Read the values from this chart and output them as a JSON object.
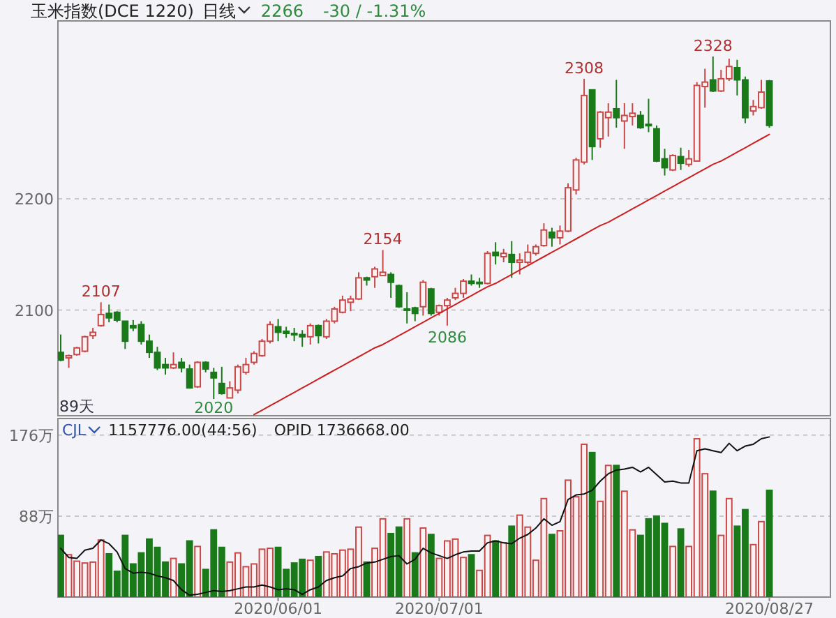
{
  "chart_data": [
    {
      "type": "candlestick",
      "title": "玉米指数(DCE 1220)",
      "subtitle": "日线",
      "annotations": [
        "2266",
        "-30 / -1.31%",
        "89天",
        {
          "text": "2107",
          "y": 2107
        },
        {
          "text": "2020",
          "y": 2020
        },
        {
          "text": "2154",
          "y": 2154
        },
        {
          "text": "2086",
          "y": 2086
        },
        {
          "text": "2308",
          "y": 2308
        },
        {
          "text": "2328",
          "y": 2328
        }
      ],
      "categories": [
        null,
        null,
        null,
        null,
        null,
        null,
        null,
        null,
        null,
        null,
        null,
        null,
        null,
        null,
        null,
        null,
        null,
        null,
        null,
        null,
        null,
        null,
        null,
        null,
        null,
        null,
        null,
        "2020/06/01",
        null,
        null,
        null,
        null,
        null,
        null,
        null,
        null,
        null,
        null,
        null,
        null,
        null,
        null,
        null,
        null,
        null,
        null,
        null,
        "2020/07/01",
        null,
        null,
        null,
        null,
        null,
        null,
        null,
        null,
        null,
        null,
        null,
        null,
        null,
        null,
        null,
        null,
        null,
        null,
        null,
        null,
        null,
        null,
        null,
        null,
        null,
        null,
        null,
        null,
        null,
        null,
        null,
        null,
        null,
        null,
        null,
        null,
        null,
        null,
        null,
        null,
        "2020/08/27"
      ],
      "ohlc": [
        [
          2062,
          2078,
          2054,
          2055
        ],
        [
          2057,
          2060,
          2048,
          2059
        ],
        [
          2060,
          2067,
          2059,
          2066
        ],
        [
          2063,
          2077,
          2062,
          2076
        ],
        [
          2077,
          2084,
          2074,
          2080
        ],
        [
          2086,
          2107,
          2085,
          2096
        ],
        [
          2097,
          2105,
          2089,
          2093
        ],
        [
          2098,
          2099,
          2089,
          2091
        ],
        [
          2090,
          2090,
          2065,
          2072
        ],
        [
          2086,
          2091,
          2081,
          2084
        ],
        [
          2087,
          2090,
          2069,
          2072
        ],
        [
          2072,
          2078,
          2057,
          2062
        ],
        [
          2062,
          2067,
          2046,
          2048
        ],
        [
          2051,
          2057,
          2042,
          2048
        ],
        [
          2048,
          2062,
          2047,
          2051
        ],
        [
          2053,
          2057,
          2044,
          2048
        ],
        [
          2047,
          2051,
          2030,
          2030
        ],
        [
          2031,
          2054,
          2030,
          2053
        ],
        [
          2053,
          2054,
          2044,
          2047
        ],
        [
          2044,
          2048,
          2020,
          2039
        ],
        [
          2034,
          2049,
          2024,
          2025
        ],
        [
          2021,
          2036,
          2021,
          2030
        ],
        [
          2028,
          2051,
          2025,
          2049
        ],
        [
          2044,
          2057,
          2042,
          2051
        ],
        [
          2053,
          2063,
          2051,
          2061
        ],
        [
          2059,
          2074,
          2058,
          2072
        ],
        [
          2072,
          2090,
          2070,
          2087
        ],
        [
          2085,
          2092,
          2072,
          2080
        ],
        [
          2081,
          2085,
          2075,
          2079
        ],
        [
          2079,
          2084,
          2072,
          2078
        ],
        [
          2078,
          2082,
          2067,
          2076
        ],
        [
          2076,
          2088,
          2069,
          2086
        ],
        [
          2086,
          2087,
          2070,
          2077
        ],
        [
          2076,
          2092,
          2074,
          2090
        ],
        [
          2090,
          2103,
          2088,
          2101
        ],
        [
          2098,
          2113,
          2097,
          2109
        ],
        [
          2107,
          2113,
          2099,
          2110
        ],
        [
          2110,
          2134,
          2109,
          2129
        ],
        [
          2129,
          2130,
          2122,
          2127
        ],
        [
          2130,
          2139,
          2120,
          2137
        ],
        [
          2131,
          2154,
          2131,
          2134
        ],
        [
          2132,
          2134,
          2111,
          2125
        ],
        [
          2122,
          2123,
          2102,
          2103
        ],
        [
          2101,
          2116,
          2088,
          2100
        ],
        [
          2102,
          2103,
          2090,
          2097
        ],
        [
          2103,
          2127,
          2095,
          2125
        ],
        [
          2119,
          2120,
          2095,
          2097
        ],
        [
          2098,
          2105,
          2095,
          2104
        ],
        [
          2104,
          2111,
          2086,
          2109
        ],
        [
          2111,
          2120,
          2109,
          2115
        ],
        [
          2115,
          2128,
          2111,
          2126
        ],
        [
          2126,
          2132,
          2122,
          2124
        ],
        [
          2125,
          2129,
          2120,
          2124
        ],
        [
          2124,
          2153,
          2123,
          2151
        ],
        [
          2152,
          2161,
          2141,
          2149
        ],
        [
          2148,
          2155,
          2143,
          2151
        ],
        [
          2150,
          2162,
          2129,
          2143
        ],
        [
          2143,
          2151,
          2132,
          2145
        ],
        [
          2143,
          2159,
          2141,
          2152
        ],
        [
          2151,
          2159,
          2149,
          2157
        ],
        [
          2158,
          2178,
          2157,
          2172
        ],
        [
          2170,
          2174,
          2157,
          2165
        ],
        [
          2165,
          2176,
          2159,
          2171
        ],
        [
          2171,
          2214,
          2170,
          2210
        ],
        [
          2208,
          2237,
          2204,
          2235
        ],
        [
          2233,
          2308,
          2231,
          2293
        ],
        [
          2298,
          2298,
          2235,
          2247
        ],
        [
          2254,
          2279,
          2246,
          2278
        ],
        [
          2273,
          2286,
          2256,
          2278
        ],
        [
          2281,
          2307,
          2264,
          2273
        ],
        [
          2270,
          2286,
          2245,
          2275
        ],
        [
          2274,
          2286,
          2266,
          2277
        ],
        [
          2275,
          2279,
          2263,
          2264
        ],
        [
          2267,
          2290,
          2260,
          2266
        ],
        [
          2263,
          2266,
          2233,
          2234
        ],
        [
          2236,
          2245,
          2221,
          2228
        ],
        [
          2226,
          2240,
          2225,
          2239
        ],
        [
          2238,
          2246,
          2226,
          2232
        ],
        [
          2231,
          2244,
          2229,
          2236
        ],
        [
          2234,
          2305,
          2234,
          2302
        ],
        [
          2301,
          2317,
          2282,
          2305
        ],
        [
          2307,
          2328,
          2296,
          2297
        ],
        [
          2297,
          2316,
          2296,
          2308
        ],
        [
          2308,
          2326,
          2306,
          2319
        ],
        [
          2318,
          2325,
          2293,
          2307
        ],
        [
          2307,
          2310,
          2268,
          2273
        ],
        [
          2279,
          2289,
          2275,
          2283
        ],
        [
          2282,
          2307,
          2281,
          2296
        ],
        [
          2306,
          2307,
          2264,
          2266
        ]
      ],
      "series": [
        {
          "type": "line",
          "color": "#cc1f1f",
          "values": [
            null,
            null,
            null,
            null,
            null,
            null,
            null,
            null,
            null,
            null,
            null,
            null,
            null,
            null,
            null,
            null,
            null,
            null,
            null,
            null,
            null,
            null,
            null,
            null,
            2006,
            2010,
            2014,
            2018,
            2022,
            2026,
            2030,
            2034,
            2038,
            2042,
            2046,
            2050,
            2054,
            2058,
            2062,
            2066,
            2069,
            2073,
            2077,
            2081,
            2085,
            2089,
            2093,
            2097,
            2101,
            2105,
            2109,
            2113,
            2117,
            2121,
            2124,
            2128,
            2132,
            2136,
            2140,
            2144,
            2148,
            2152,
            2156,
            2160,
            2164,
            2168,
            2172,
            2176,
            2179,
            2183,
            2187,
            2191,
            2195,
            2199,
            2203,
            2207,
            2211,
            2215,
            2219,
            2223,
            2227,
            2231,
            2234,
            2238,
            2242,
            2246,
            2250,
            2254,
            2258
          ]
        }
      ],
      "ylim": [
        2005,
        2360
      ],
      "yticks": [
        2100,
        2200
      ],
      "grid": "y",
      "tick_labels": "y"
    },
    {
      "type": "bar",
      "annotations": [
        "CJL",
        "1157776.00(44:56)",
        "OPID 1736668.00"
      ],
      "categories": [
        null,
        null,
        null,
        null,
        null,
        null,
        null,
        null,
        null,
        null,
        null,
        null,
        null,
        null,
        null,
        null,
        null,
        null,
        null,
        null,
        null,
        null,
        null,
        null,
        null,
        null,
        null,
        "2020/06/01",
        null,
        null,
        null,
        null,
        null,
        null,
        null,
        null,
        null,
        null,
        null,
        null,
        null,
        null,
        null,
        null,
        null,
        null,
        null,
        "2020/07/01",
        null,
        null,
        null,
        null,
        null,
        null,
        null,
        null,
        null,
        null,
        null,
        null,
        null,
        null,
        null,
        null,
        null,
        null,
        null,
        null,
        null,
        null,
        null,
        null,
        null,
        null,
        null,
        null,
        null,
        null,
        null,
        null,
        null,
        null,
        null,
        null,
        null,
        null,
        null,
        null,
        "2020/08/27"
      ],
      "series": [
        {
          "type": "bar",
          "values": [
            67,
            46,
            39,
            37,
            38,
            62,
            47,
            28,
            67,
            36,
            48,
            63,
            54,
            38,
            42,
            36,
            61,
            55,
            30,
            73,
            54,
            38,
            48,
            33,
            36,
            52,
            53,
            54,
            30,
            37,
            41,
            40,
            44,
            49,
            47,
            51,
            52,
            76,
            38,
            53,
            85,
            69,
            76,
            85,
            48,
            75,
            68,
            42,
            61,
            63,
            43,
            46,
            29,
            67,
            61,
            59,
            77,
            89,
            76,
            40,
            107,
            68,
            72,
            127,
            109,
            166,
            157,
            104,
            143,
            143,
            115,
            73,
            67,
            85,
            88,
            80,
            55,
            74,
            55,
            172,
            134,
            115,
            67,
            107,
            77,
            95,
            57,
            82,
            116
          ],
          "colors": [
            "#1a7a1a",
            "#c84848",
            "#c84848",
            "#c84848",
            "#c84848",
            "#c84848",
            "#1a7a1a",
            "#1a7a1a",
            "#1a7a1a",
            "#1a7a1a",
            "#1a7a1a",
            "#1a7a1a",
            "#1a7a1a",
            "#1a7a1a",
            "#c84848",
            "#1a7a1a",
            "#1a7a1a",
            "#c84848",
            "#1a7a1a",
            "#1a7a1a",
            "#1a7a1a",
            "#c84848",
            "#c84848",
            "#c84848",
            "#c84848",
            "#c84848",
            "#c84848",
            "#1a7a1a",
            "#1a7a1a",
            "#1a7a1a",
            "#1a7a1a",
            "#c84848",
            "#1a7a1a",
            "#c84848",
            "#c84848",
            "#c84848",
            "#c84848",
            "#c84848",
            "#1a7a1a",
            "#c84848",
            "#c84848",
            "#1a7a1a",
            "#1a7a1a",
            "#c84848",
            "#1a7a1a",
            "#c84848",
            "#1a7a1a",
            "#c84848",
            "#c84848",
            "#c84848",
            "#c84848",
            "#1a7a1a",
            "#c84848",
            "#c84848",
            "#1a7a1a",
            "#c84848",
            "#1a7a1a",
            "#c84848",
            "#c84848",
            "#c84848",
            "#c84848",
            "#1a7a1a",
            "#c84848",
            "#c84848",
            "#c84848",
            "#c84848",
            "#1a7a1a",
            "#c84848",
            "#c84848",
            "#1a7a1a",
            "#c84848",
            "#c84848",
            "#1a7a1a",
            "#1a7a1a",
            "#1a7a1a",
            "#1a7a1a",
            "#c84848",
            "#1a7a1a",
            "#c84848",
            "#c84848",
            "#c84848",
            "#1a7a1a",
            "#c84848",
            "#c84848",
            "#1a7a1a",
            "#1a7a1a",
            "#c84848",
            "#c84848",
            "#1a7a1a"
          ]
        },
        {
          "type": "line",
          "color": "#111111",
          "values": [
            53,
            43,
            42,
            51,
            53,
            62,
            58,
            49,
            31,
            26,
            27,
            26,
            23,
            21,
            18,
            8,
            2,
            3,
            5,
            7,
            6,
            7,
            9,
            11,
            11,
            13,
            11,
            8,
            9,
            8,
            3,
            8,
            11,
            18,
            21,
            23,
            31,
            33,
            37,
            38,
            41,
            44,
            45,
            36,
            41,
            53,
            48,
            45,
            42,
            46,
            49,
            50,
            50,
            59,
            61,
            59,
            58,
            64,
            68,
            75,
            85,
            78,
            82,
            106,
            111,
            112,
            116,
            126,
            134,
            138,
            139,
            141,
            136,
            141,
            133,
            125,
            126,
            124,
            124,
            159,
            161,
            159,
            157,
            167,
            159,
            164,
            166,
            172,
            174
          ]
        }
      ],
      "ylim": [
        0,
        194
      ],
      "yticks": [
        {
          "value": 88,
          "label": "88万"
        },
        {
          "value": 176,
          "label": "176万"
        }
      ],
      "grid": "y"
    }
  ]
}
